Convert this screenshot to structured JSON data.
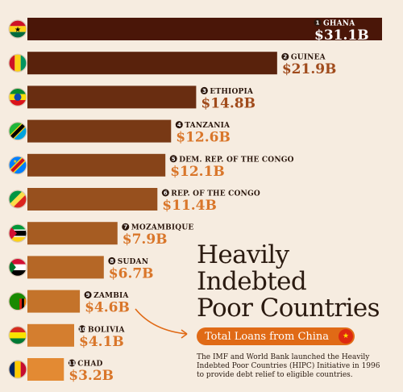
{
  "colors": {
    "background": "#f6ece0",
    "bar_dark": "#4a1608",
    "bar_light": "#e38a33",
    "label_text_dark": "#2a160c",
    "value_text_orange": "#d9762a",
    "accent": "#e06a16"
  },
  "chart_data": {
    "type": "bar",
    "orientation": "horizontal",
    "categories": [
      "GHANA",
      "GUINEA",
      "ETHIOPIA",
      "TANZANIA",
      "DEM. REP. OF THE CONGO",
      "REP. OF THE CONGO",
      "MOZAMBIQUE",
      "SUDAN",
      "ZAMBIA",
      "BOLIVIA",
      "CHAD"
    ],
    "ranks": [
      "1",
      "2",
      "3",
      "4",
      "5",
      "6",
      "7",
      "8",
      "9",
      "10",
      "11"
    ],
    "values": [
      31.1,
      21.9,
      14.8,
      12.6,
      12.1,
      11.4,
      7.9,
      6.7,
      4.6,
      4.1,
      3.2
    ],
    "value_labels": [
      "$31.1B",
      "$21.9B",
      "$14.8B",
      "$12.6B",
      "$12.1B",
      "$11.4B",
      "$7.9B",
      "$6.7B",
      "$4.6B",
      "$4.1B",
      "$3.2B"
    ],
    "flags": [
      "ghana-flag-icon",
      "guinea-flag-icon",
      "ethiopia-flag-icon",
      "tanzania-flag-icon",
      "drc-flag-icon",
      "congo-flag-icon",
      "mozambique-flag-icon",
      "sudan-flag-icon",
      "zambia-flag-icon",
      "bolivia-flag-icon",
      "chad-flag-icon"
    ],
    "unit": "USD billions",
    "xlim": [
      0,
      31.1
    ],
    "grid": false,
    "legend": "none"
  },
  "title_lines": [
    "Heavily",
    "Indebted",
    "Poor Countries"
  ],
  "subtitle": "Total Loans from China",
  "subtitle_icon": "china-flag-icon",
  "description": "The IMF and World Bank launched the Heavily Indebted Poor Countries (HIPC) Initiative in 1996 to provide debt relief to eligible countries."
}
